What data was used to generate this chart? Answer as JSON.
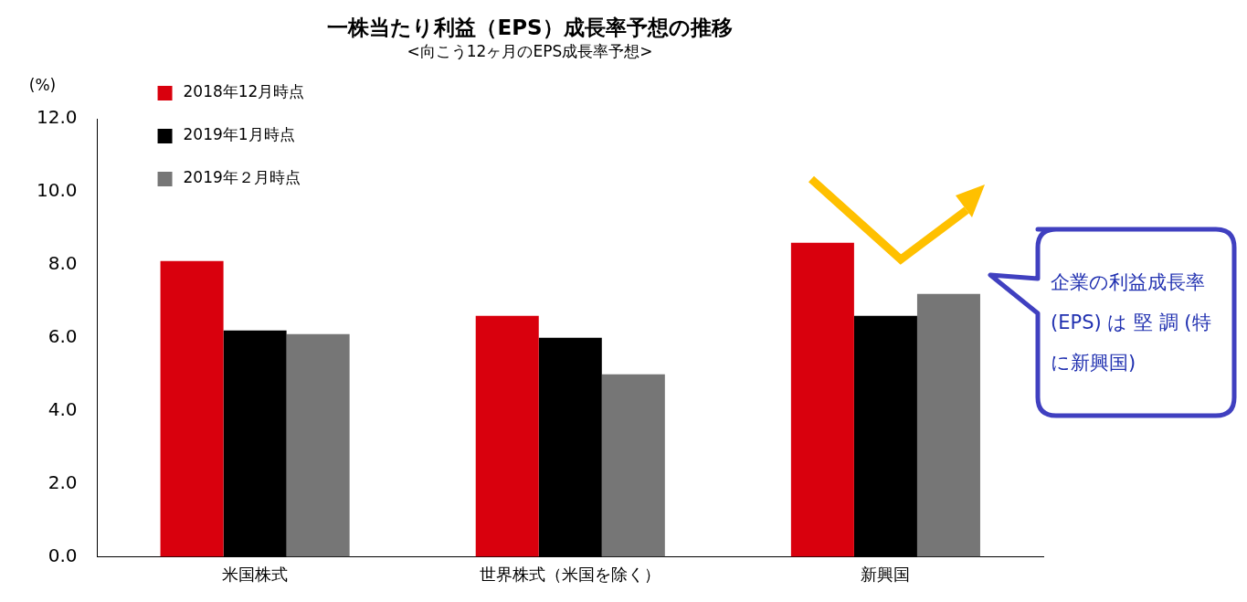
{
  "chart_data": {
    "type": "bar",
    "title": "一株当たり利益（EPS）成長率予想の推移",
    "subtitle": "<向こう12ヶ月のEPS成長率予想>",
    "ylabel": "(%)",
    "categories": [
      "米国株式",
      "世界株式（米国を除く）",
      "新興国"
    ],
    "series": [
      {
        "name": "2018年12月時点",
        "color": "#d9000d",
        "values": [
          8.1,
          6.6,
          8.6
        ]
      },
      {
        "name": "2019年1月時点",
        "color": "#000000",
        "values": [
          6.2,
          6.0,
          6.6
        ]
      },
      {
        "name": "2019年２月時点",
        "color": "#767676",
        "values": [
          6.1,
          5.0,
          7.2
        ]
      }
    ],
    "ylim": [
      0,
      12
    ],
    "yticks": [
      {
        "value": 0,
        "label": "0.0"
      },
      {
        "value": 2,
        "label": "2.0"
      },
      {
        "value": 4,
        "label": "4.0"
      },
      {
        "value": 6,
        "label": "6.0"
      },
      {
        "value": 8,
        "label": "8.0"
      },
      {
        "value": 10,
        "label": "10.0"
      },
      {
        "value": 12,
        "label": "12.0"
      }
    ],
    "grid": false,
    "legend": "top left",
    "annotations": [
      "企業の利益成長率 (EPS) は 堅 調 (特に新興国)"
    ]
  }
}
